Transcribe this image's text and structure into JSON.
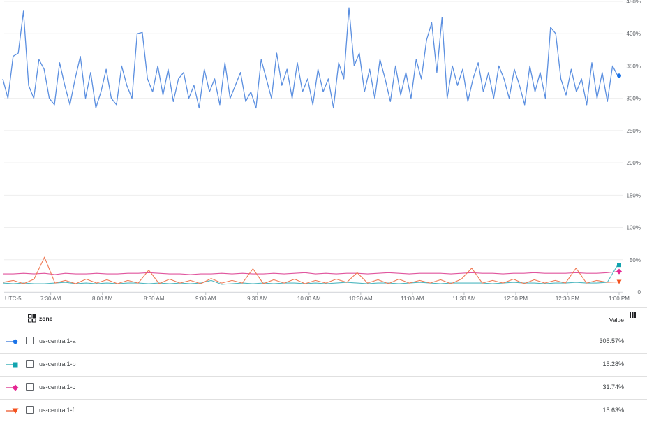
{
  "chart_data": {
    "type": "line",
    "x_start": "07:03",
    "step_minutes": 3,
    "x_end": "13:00",
    "timezone_label": "UTC-5",
    "xticks": [
      "7:30 AM",
      "8:00 AM",
      "8:30 AM",
      "9:00 AM",
      "9:30 AM",
      "10:00 AM",
      "10:30 AM",
      "11:00 AM",
      "11:30 AM",
      "12:00 PM",
      "12:30 PM",
      "1:00 PM"
    ],
    "xtick_times": [
      "07:30",
      "08:00",
      "08:30",
      "09:00",
      "09:30",
      "10:00",
      "10:30",
      "11:00",
      "11:30",
      "12:00",
      "12:30",
      "13:00"
    ],
    "yticks": [
      "0",
      "50%",
      "100%",
      "150%",
      "200%",
      "250%",
      "300%",
      "350%",
      "400%",
      "450%"
    ],
    "ytick_values": [
      0,
      50,
      100,
      150,
      200,
      250,
      300,
      350,
      400,
      450
    ],
    "ylim": [
      0,
      450
    ],
    "grid": true,
    "legend_placement": "bottom-table",
    "series": [
      {
        "name": "us-central1-a",
        "color": "#1a73e8",
        "line_color": "#5b8fe0",
        "marker": "circle",
        "step_minutes": 3,
        "values": [
          330,
          300,
          365,
          370,
          435,
          320,
          300,
          360,
          345,
          300,
          290,
          355,
          320,
          290,
          330,
          365,
          300,
          340,
          285,
          310,
          345,
          300,
          290,
          350,
          320,
          300,
          400,
          402,
          330,
          310,
          350,
          305,
          345,
          295,
          330,
          340,
          300,
          320,
          285,
          345,
          310,
          330,
          290,
          355,
          300,
          320,
          340,
          295,
          310,
          285,
          360,
          330,
          300,
          370,
          320,
          345,
          300,
          355,
          310,
          330,
          290,
          345,
          310,
          330,
          285,
          355,
          330,
          440,
          350,
          370,
          310,
          345,
          300,
          360,
          330,
          295,
          350,
          305,
          340,
          300,
          360,
          330,
          390,
          417,
          340,
          425,
          300,
          350,
          320,
          345,
          295,
          330,
          355,
          310,
          340,
          300,
          350,
          330,
          300,
          345,
          320,
          290,
          350,
          310,
          340,
          300,
          410,
          400,
          330,
          305,
          345,
          310,
          330,
          290,
          355,
          300,
          340,
          295,
          350,
          335
        ]
      },
      {
        "name": "us-central1-b",
        "color": "#12a4af",
        "line_color": "#4fb8c0",
        "marker": "square",
        "step_minutes": 6,
        "values": [
          14,
          13,
          14,
          13,
          13,
          14,
          15,
          13,
          14,
          13,
          14,
          13,
          14,
          14,
          13,
          14,
          13,
          14,
          13,
          14,
          18,
          12,
          13,
          14,
          13,
          14,
          13,
          14,
          14,
          13,
          14,
          13,
          14,
          15,
          14,
          13,
          14,
          14,
          13,
          14,
          15,
          14,
          13,
          14,
          14,
          14,
          14,
          13,
          14,
          15,
          14,
          14,
          13,
          14,
          14,
          15,
          14,
          14,
          15,
          42
        ]
      },
      {
        "name": "us-central1-c",
        "color": "#e52592",
        "line_color": "#e0559e",
        "marker": "diamond",
        "step_minutes": 6,
        "values": [
          28,
          28,
          29,
          28,
          29,
          27,
          29,
          28,
          28,
          29,
          28,
          28,
          29,
          29,
          30,
          29,
          28,
          28,
          27,
          28,
          28,
          29,
          28,
          29,
          28,
          28,
          29,
          28,
          29,
          30,
          28,
          29,
          28,
          29,
          29,
          28,
          29,
          30,
          29,
          28,
          29,
          29,
          29,
          28,
          29,
          30,
          29,
          29,
          28,
          29,
          29,
          30,
          29,
          29,
          29,
          30,
          29,
          29,
          30,
          31.74
        ]
      },
      {
        "name": "us-central1-f",
        "color": "#f4511e",
        "line_color": "#f07a55",
        "marker": "triangle-down",
        "step_minutes": 6,
        "values": [
          15,
          18,
          13,
          20,
          54,
          14,
          18,
          13,
          20,
          14,
          19,
          13,
          18,
          14,
          34,
          13,
          20,
          14,
          18,
          13,
          21,
          14,
          18,
          14,
          36,
          13,
          19,
          14,
          20,
          13,
          18,
          14,
          20,
          15,
          30,
          14,
          19,
          13,
          20,
          14,
          18,
          14,
          19,
          13,
          20,
          37,
          14,
          18,
          14,
          20,
          13,
          19,
          14,
          18,
          14,
          37,
          14,
          18,
          15,
          15.63
        ]
      }
    ]
  },
  "legend": {
    "header_label": "zone",
    "value_header": "Value",
    "rows": [
      {
        "name": "us-central1-a",
        "value": "305.57%"
      },
      {
        "name": "us-central1-b",
        "value": "15.28%"
      },
      {
        "name": "us-central1-c",
        "value": "31.74%"
      },
      {
        "name": "us-central1-f",
        "value": "15.63%"
      }
    ]
  }
}
